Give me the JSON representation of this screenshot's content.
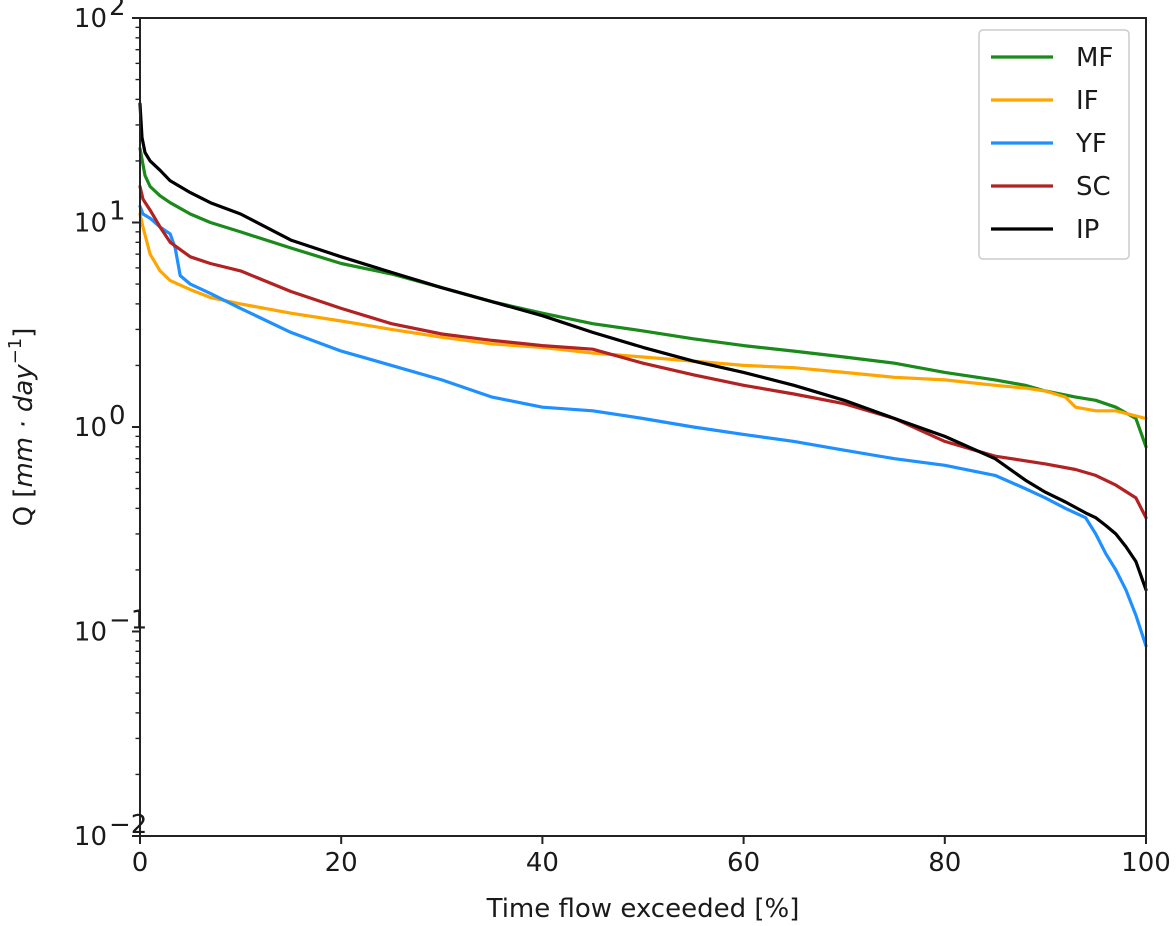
{
  "chart_data": {
    "type": "line",
    "title": "",
    "xlabel": "Time flow exceeded [%]",
    "ylabel_prefix": "Q [",
    "ylabel_math": "mm · day",
    "ylabel_sup": "−1",
    "ylabel_suffix": "]",
    "xlim": [
      0,
      100
    ],
    "ylim": [
      0.01,
      100
    ],
    "yscale": "log",
    "grid": false,
    "legend_position": "top-right",
    "x_ticks": [
      0,
      20,
      40,
      60,
      80,
      100
    ],
    "x_tick_labels": [
      "0",
      "20",
      "40",
      "60",
      "80",
      "100"
    ],
    "y_ticks": [
      {
        "value": 100,
        "base": "10",
        "exp": "2"
      },
      {
        "value": 10,
        "base": "10",
        "exp": "1"
      },
      {
        "value": 1,
        "base": "10",
        "exp": "0"
      },
      {
        "value": 0.1,
        "base": "10",
        "exp": "−1"
      },
      {
        "value": 0.01,
        "base": "10",
        "exp": "−2"
      }
    ],
    "series": [
      {
        "name": "MF",
        "color": "#1a8a1a",
        "x": [
          0,
          0.5,
          1,
          2,
          3,
          5,
          7,
          10,
          15,
          20,
          25,
          30,
          35,
          40,
          45,
          50,
          55,
          60,
          65,
          70,
          75,
          80,
          85,
          88,
          90,
          93,
          95,
          97,
          99,
          100
        ],
        "y": [
          23,
          17,
          15,
          13.5,
          12.5,
          11,
          10,
          9,
          7.5,
          6.3,
          5.6,
          4.8,
          4.1,
          3.6,
          3.2,
          2.95,
          2.7,
          2.5,
          2.35,
          2.2,
          2.05,
          1.85,
          1.7,
          1.6,
          1.5,
          1.4,
          1.35,
          1.25,
          1.1,
          0.8
        ]
      },
      {
        "name": "IF",
        "color": "#ffa500",
        "x": [
          0,
          0.3,
          0.7,
          1,
          2,
          3,
          5,
          7,
          10,
          15,
          20,
          25,
          30,
          35,
          40,
          45,
          50,
          55,
          60,
          65,
          70,
          75,
          80,
          85,
          88,
          90,
          92,
          93,
          95,
          97,
          100
        ],
        "y": [
          11,
          9.5,
          8,
          7,
          5.8,
          5.2,
          4.7,
          4.3,
          4.0,
          3.6,
          3.3,
          3.0,
          2.75,
          2.55,
          2.45,
          2.3,
          2.2,
          2.1,
          2.0,
          1.95,
          1.85,
          1.75,
          1.7,
          1.6,
          1.55,
          1.5,
          1.4,
          1.25,
          1.2,
          1.2,
          1.1
        ]
      },
      {
        "name": "YF",
        "color": "#1e90ff",
        "x": [
          0,
          0.3,
          1,
          2,
          3,
          3.5,
          4,
          5,
          7,
          10,
          15,
          20,
          25,
          30,
          35,
          40,
          45,
          50,
          55,
          60,
          65,
          70,
          75,
          80,
          85,
          88,
          90,
          92,
          94,
          95,
          96,
          97,
          98,
          99,
          100
        ],
        "y": [
          12,
          11,
          10.5,
          9.5,
          8.8,
          7.5,
          5.5,
          5.0,
          4.5,
          3.8,
          2.9,
          2.35,
          2.0,
          1.7,
          1.4,
          1.25,
          1.2,
          1.1,
          1.0,
          0.92,
          0.85,
          0.77,
          0.7,
          0.65,
          0.58,
          0.5,
          0.45,
          0.4,
          0.36,
          0.3,
          0.24,
          0.2,
          0.16,
          0.12,
          0.085
        ]
      },
      {
        "name": "SC",
        "color": "#b22222",
        "x": [
          0,
          0.3,
          1,
          2,
          3,
          5,
          7,
          10,
          15,
          20,
          25,
          30,
          35,
          40,
          45,
          50,
          55,
          60,
          65,
          70,
          75,
          80,
          85,
          90,
          93,
          95,
          97,
          99,
          100
        ],
        "y": [
          15,
          13,
          11.5,
          9.5,
          8,
          6.8,
          6.3,
          5.8,
          4.6,
          3.8,
          3.2,
          2.85,
          2.65,
          2.5,
          2.4,
          2.05,
          1.8,
          1.6,
          1.45,
          1.3,
          1.1,
          0.85,
          0.72,
          0.66,
          0.62,
          0.58,
          0.52,
          0.45,
          0.36
        ]
      },
      {
        "name": "IP",
        "color": "#000000",
        "x": [
          0,
          0.2,
          0.5,
          1,
          2,
          3,
          5,
          7,
          10,
          15,
          20,
          25,
          30,
          35,
          40,
          45,
          50,
          55,
          60,
          65,
          70,
          75,
          80,
          85,
          88,
          90,
          92,
          94,
          95,
          96,
          97,
          98,
          99,
          100
        ],
        "y": [
          38,
          26,
          22,
          20,
          18,
          16,
          14,
          12.5,
          11,
          8.2,
          6.8,
          5.7,
          4.8,
          4.1,
          3.5,
          2.9,
          2.45,
          2.1,
          1.85,
          1.6,
          1.35,
          1.1,
          0.9,
          0.7,
          0.55,
          0.48,
          0.43,
          0.38,
          0.36,
          0.33,
          0.3,
          0.26,
          0.22,
          0.16
        ]
      }
    ]
  }
}
